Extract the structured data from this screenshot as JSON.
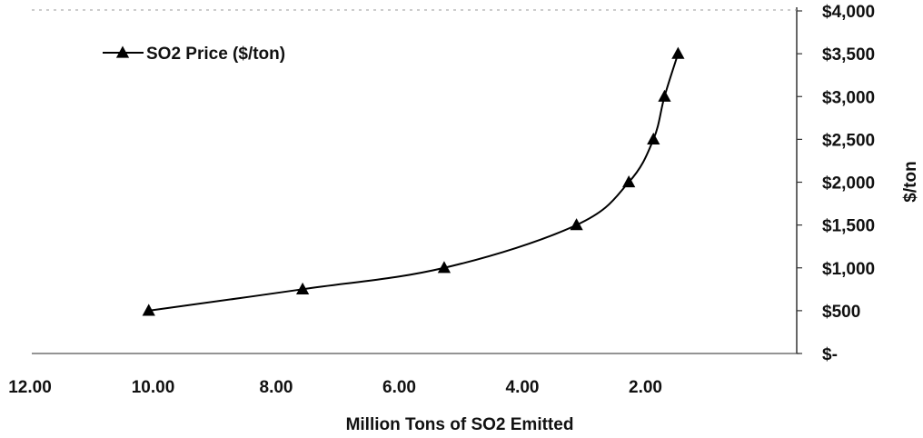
{
  "chart_data": {
    "type": "line",
    "title": "",
    "xlabel": "Million Tons of SO2 Emitted",
    "ylabel": "$/ton",
    "x_reversed": true,
    "xlim": [
      12,
      0
    ],
    "ylim": [
      0,
      4000
    ],
    "x_ticks": [
      12,
      10,
      8,
      6,
      4,
      2
    ],
    "x_tick_labels": [
      "12.00",
      "10.00",
      "8.00",
      "6.00",
      "4.00",
      "2.00"
    ],
    "y_ticks": [
      0,
      500,
      1000,
      1500,
      2000,
      2500,
      3000,
      3500,
      4000
    ],
    "y_tick_labels": [
      "$-",
      "$500",
      "$1,000",
      "$1,500",
      "$2,000",
      "$2,500",
      "$3,000",
      "$3,500",
      "$4,000"
    ],
    "y_axis_side": "right",
    "grid": false,
    "legend_position": "top-left",
    "series": [
      {
        "name": "SO2 Price ($/ton)",
        "marker": "triangle",
        "color": "#000000",
        "x": [
          10.1,
          7.6,
          5.3,
          3.15,
          2.3,
          1.9,
          1.72,
          1.5
        ],
        "y": [
          500,
          750,
          1000,
          1500,
          2000,
          2500,
          3000,
          3500
        ]
      }
    ]
  }
}
